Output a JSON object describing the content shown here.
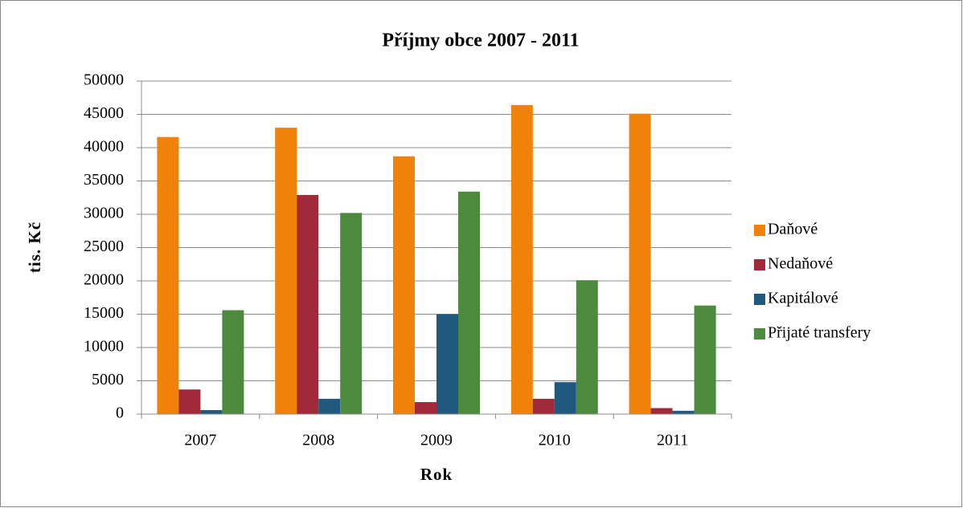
{
  "chart_data": {
    "type": "bar",
    "title": "Příjmy obce 2007 - 2011",
    "x_label": "Rok",
    "y_label": "tis. Kč",
    "categories": [
      "2007",
      "2008",
      "2009",
      "2010",
      "2011"
    ],
    "series": [
      {
        "name": "Daňové",
        "color": "#f0820a",
        "values": [
          41600,
          43000,
          38700,
          46400,
          45100
        ]
      },
      {
        "name": "Nedaňové",
        "color": "#a02a3a",
        "values": [
          3700,
          32900,
          1800,
          2300,
          900
        ]
      },
      {
        "name": "Kapitálové",
        "color": "#1f5a7e",
        "values": [
          600,
          2300,
          15000,
          4800,
          500
        ]
      },
      {
        "name": "Přijaté transfery",
        "color": "#4e8a3e",
        "values": [
          15600,
          30200,
          33400,
          20100,
          16300
        ]
      }
    ],
    "ylim": [
      0,
      50000
    ],
    "yticks": [
      0,
      5000,
      10000,
      15000,
      20000,
      25000,
      30000,
      35000,
      40000,
      45000,
      50000
    ],
    "grid": true,
    "legend": "right"
  }
}
